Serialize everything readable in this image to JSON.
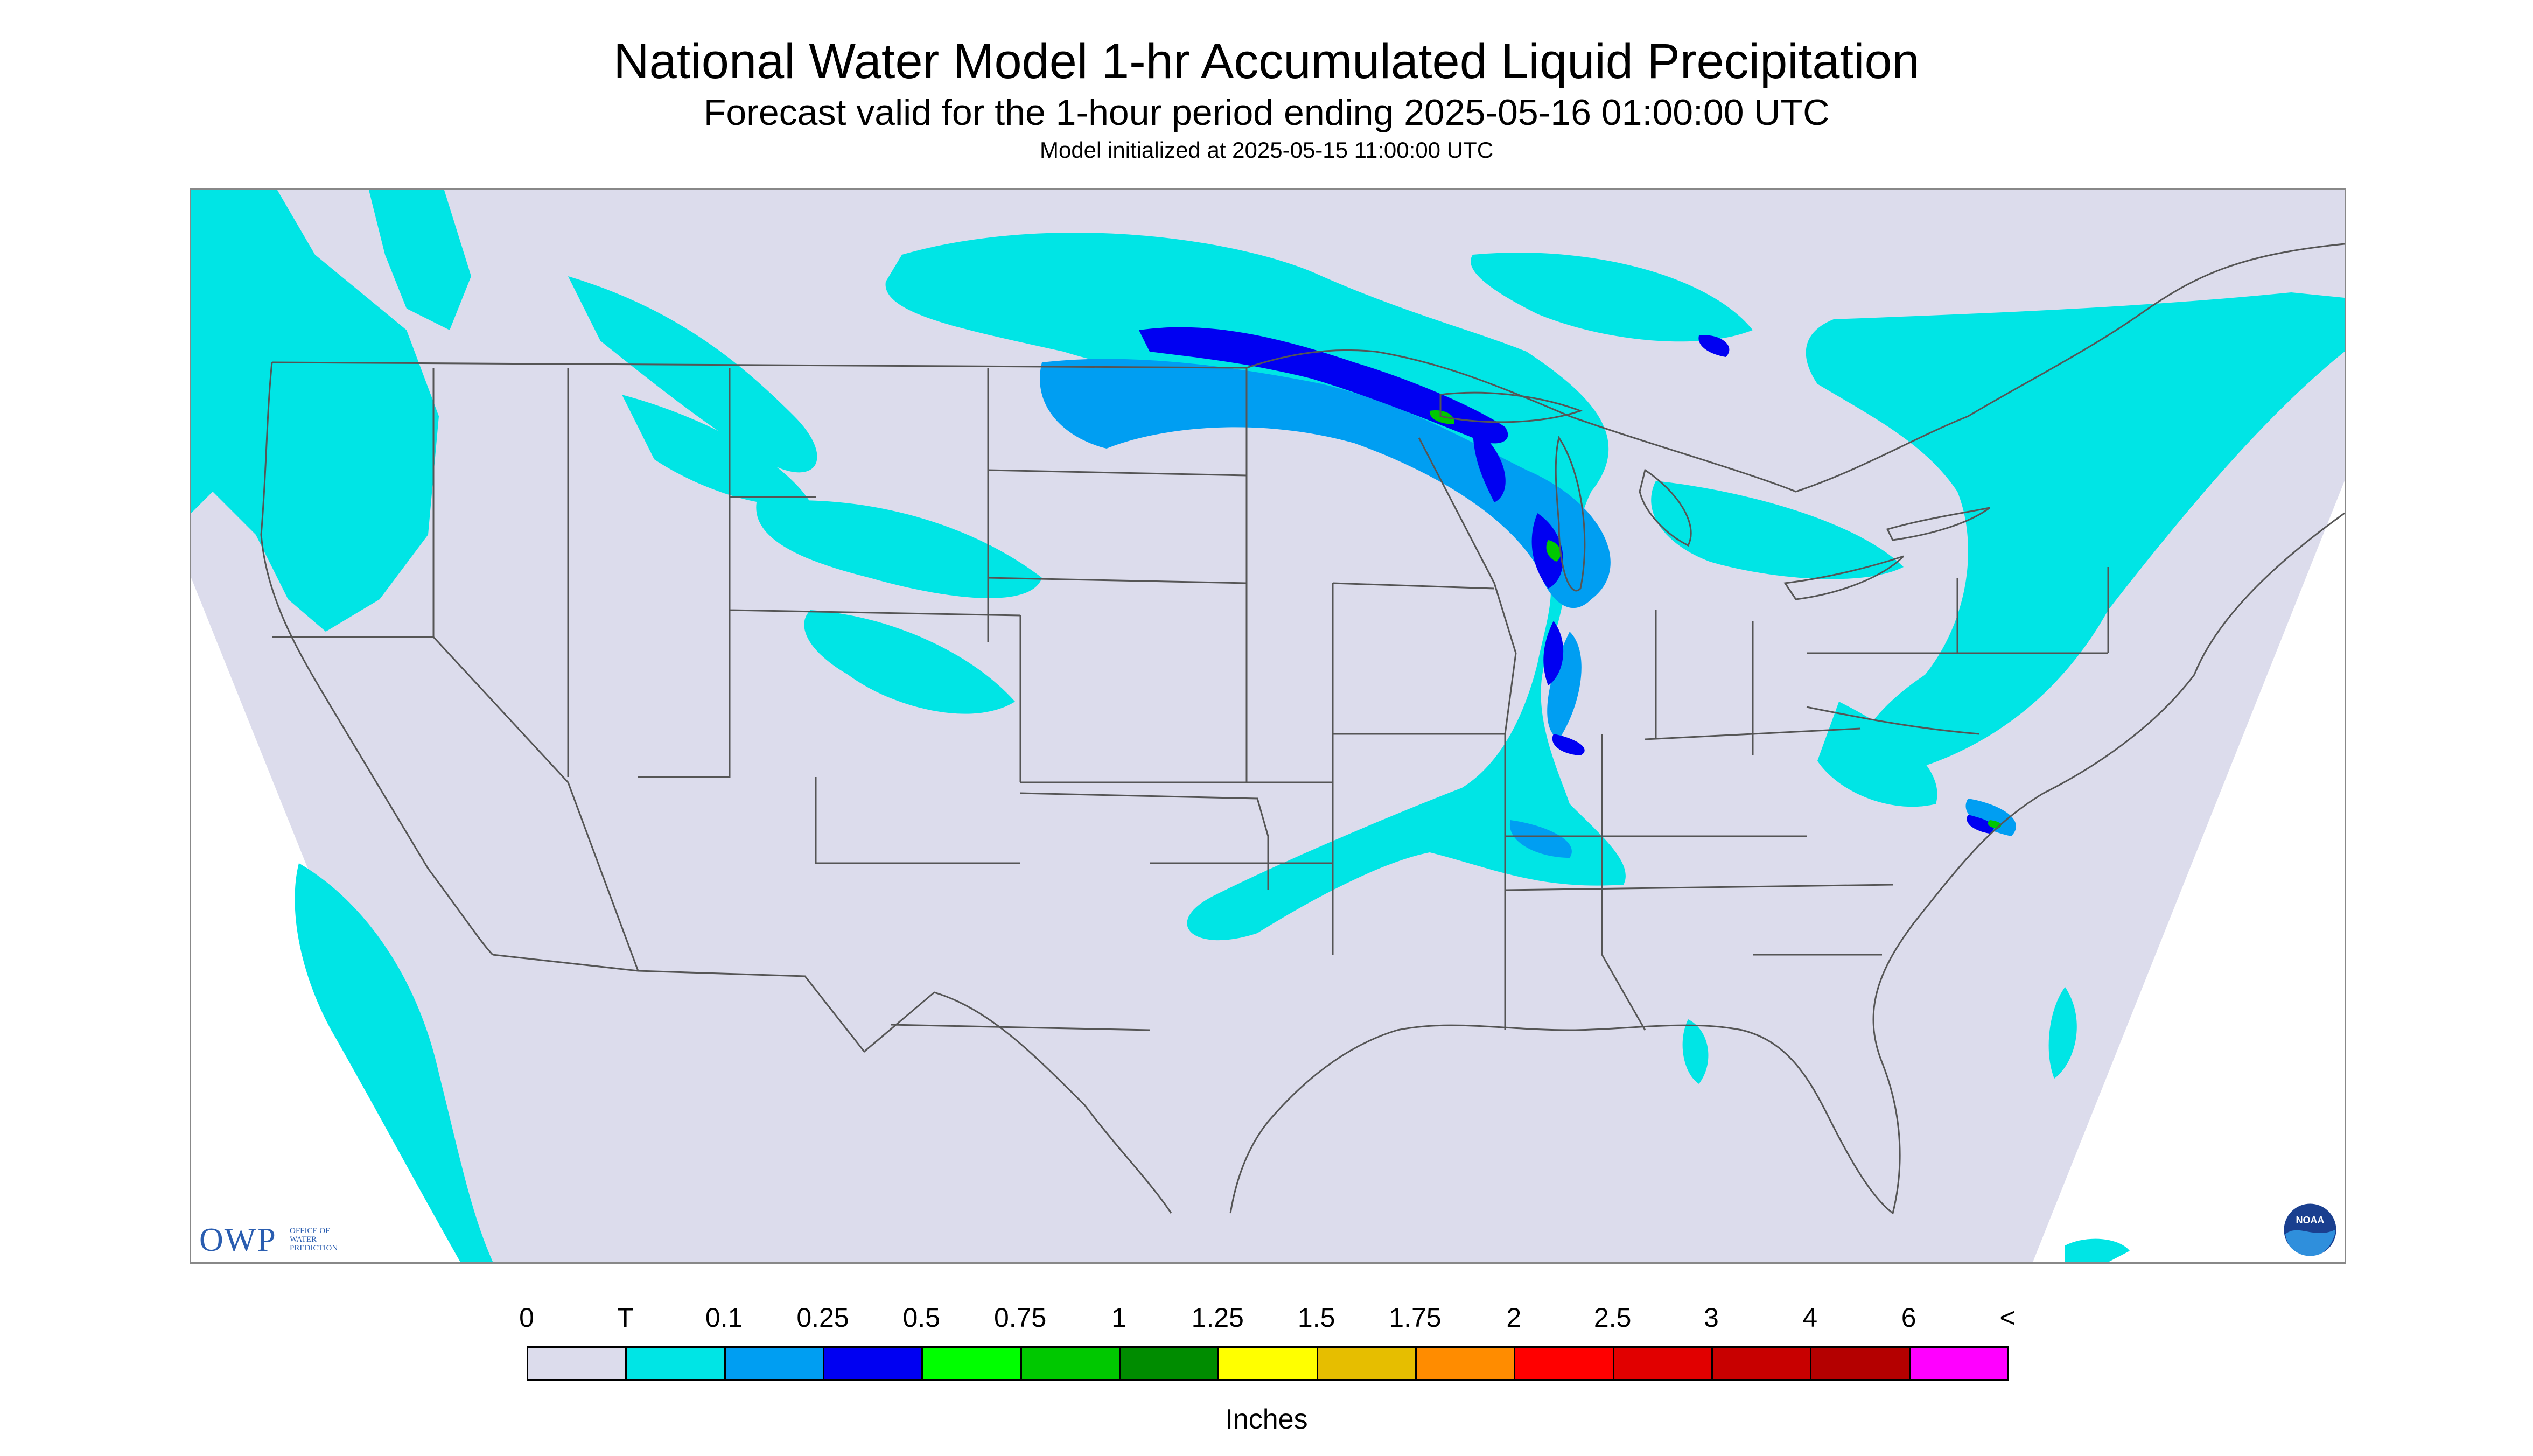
{
  "header": {
    "title": "National Water Model 1-hr Accumulated Liquid Precipitation",
    "subtitle": "Forecast valid for the 1-hour period ending 2025-05-16 01:00:00 UTC",
    "init": "Model initialized at 2025-05-15 11:00:00 UTC"
  },
  "logos": {
    "owp_mark": "OWP",
    "owp_text": "OFFICE OF WATER PREDICTION",
    "noaa_text": "NOAA"
  },
  "map": {
    "background_color": "#dcdcec",
    "outside_color": "#ffffff",
    "boundary_color": "#555555"
  },
  "legend": {
    "labels": [
      "0",
      "T",
      "0.1",
      "0.25",
      "0.5",
      "0.75",
      "1",
      "1.25",
      "1.5",
      "1.75",
      "2",
      "2.5",
      "3",
      "4",
      "6",
      "<"
    ],
    "colors": [
      "#dcdcec",
      "#00e5e5",
      "#009ef2",
      "#0000f2",
      "#00ff00",
      "#00c800",
      "#008c00",
      "#ffff00",
      "#e6be00",
      "#ff8c00",
      "#ff0000",
      "#e10000",
      "#c80000",
      "#b40000",
      "#ff00ff",
      "#9955c8"
    ],
    "unit": "Inches"
  }
}
